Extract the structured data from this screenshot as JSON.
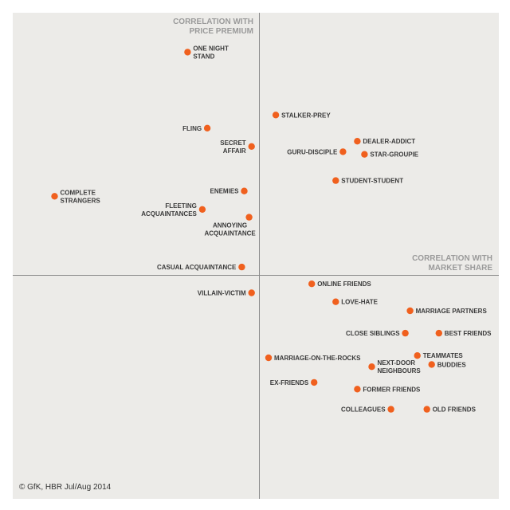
{
  "chart_data": {
    "type": "scatter",
    "title": "",
    "xlabel": "CORRELATION WITH MARKET SHARE",
    "ylabel": "CORRELATION WITH PRICE PREMIUM",
    "x_axis_title_lines": [
      "CORRELATION WITH",
      "MARKET SHARE"
    ],
    "y_axis_title_lines": [
      "CORRELATION WITH",
      "PRICE PREMIUM"
    ],
    "xlim": [
      -1,
      1
    ],
    "ylim": [
      -1,
      1
    ],
    "grid": false,
    "points": [
      {
        "lines": [
          "ONE NIGHT",
          "STAND"
        ],
        "x": -0.29,
        "y": 0.85,
        "side": "right"
      },
      {
        "lines": [
          "STALKER-PREY"
        ],
        "x": 0.07,
        "y": 0.61,
        "side": "right"
      },
      {
        "lines": [
          "FLING"
        ],
        "x": -0.21,
        "y": 0.56,
        "side": "left"
      },
      {
        "lines": [
          "SECRET",
          "AFFAIR"
        ],
        "x": -0.03,
        "y": 0.49,
        "side": "left"
      },
      {
        "lines": [
          "DEALER-ADDICT"
        ],
        "x": 0.41,
        "y": 0.51,
        "side": "right"
      },
      {
        "lines": [
          "GURU-DISCIPLE"
        ],
        "x": 0.35,
        "y": 0.47,
        "side": "left"
      },
      {
        "lines": [
          "STAR-GROUPIE"
        ],
        "x": 0.44,
        "y": 0.46,
        "side": "right"
      },
      {
        "lines": [
          "STUDENT-STUDENT"
        ],
        "x": 0.32,
        "y": 0.36,
        "side": "right"
      },
      {
        "lines": [
          "ENEMIES"
        ],
        "x": -0.06,
        "y": 0.32,
        "side": "left"
      },
      {
        "lines": [
          "COMPLETE",
          "STRANGERS"
        ],
        "x": -0.83,
        "y": 0.3,
        "side": "right"
      },
      {
        "lines": [
          "FLEETING",
          "ACQUAINTANCES"
        ],
        "x": -0.23,
        "y": 0.25,
        "side": "left"
      },
      {
        "lines": [
          "ANNOYING",
          "ACQUAINTANCE"
        ],
        "x": -0.04,
        "y": 0.22,
        "side": "below"
      },
      {
        "lines": [
          "CASUAL ACQUAINTANCE"
        ],
        "x": -0.07,
        "y": 0.03,
        "side": "left"
      },
      {
        "lines": [
          "ONLINE FRIENDS"
        ],
        "x": 0.22,
        "y": -0.04,
        "side": "right"
      },
      {
        "lines": [
          "VILLAIN-VICTIM"
        ],
        "x": -0.03,
        "y": -0.08,
        "side": "left"
      },
      {
        "lines": [
          "LOVE-HATE"
        ],
        "x": 0.32,
        "y": -0.12,
        "side": "right"
      },
      {
        "lines": [
          "MARRIAGE PARTNERS"
        ],
        "x": 0.63,
        "y": -0.16,
        "side": "right"
      },
      {
        "lines": [
          "CLOSE SIBLINGS"
        ],
        "x": 0.61,
        "y": -0.26,
        "side": "left"
      },
      {
        "lines": [
          "BEST FRIENDS"
        ],
        "x": 0.75,
        "y": -0.26,
        "side": "right"
      },
      {
        "lines": [
          "TEAMMATES"
        ],
        "x": 0.66,
        "y": -0.36,
        "side": "right"
      },
      {
        "lines": [
          "MARRIAGE-ON-THE-ROCKS"
        ],
        "x": 0.04,
        "y": -0.37,
        "side": "right"
      },
      {
        "lines": [
          "NEXT-DOOR",
          "NEIGHBOURS"
        ],
        "x": 0.47,
        "y": -0.41,
        "side": "right"
      },
      {
        "lines": [
          "BUDDIES"
        ],
        "x": 0.72,
        "y": -0.4,
        "side": "right"
      },
      {
        "lines": [
          "EX-FRIENDS"
        ],
        "x": 0.23,
        "y": -0.48,
        "side": "left"
      },
      {
        "lines": [
          "FORMER FRIENDS"
        ],
        "x": 0.41,
        "y": -0.51,
        "side": "right"
      },
      {
        "lines": [
          "COLLEAGUES"
        ],
        "x": 0.55,
        "y": -0.6,
        "side": "left"
      },
      {
        "lines": [
          "OLD FRIENDS"
        ],
        "x": 0.7,
        "y": -0.6,
        "side": "right"
      }
    ]
  },
  "source_text": "© GfK, HBR Jul/Aug 2014",
  "colors": {
    "dot": "#f0601e",
    "axis": "#8b8b8b",
    "panel": "#ecebe8",
    "label": "#3a3a3a",
    "axis_title": "#9a9a9a"
  }
}
